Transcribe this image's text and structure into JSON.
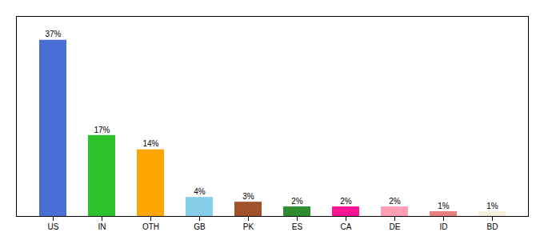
{
  "chart_data": {
    "type": "bar",
    "categories": [
      "US",
      "IN",
      "OTH",
      "GB",
      "PK",
      "ES",
      "CA",
      "DE",
      "ID",
      "BD"
    ],
    "values": [
      37,
      17,
      14,
      4,
      3,
      2,
      2,
      2,
      1,
      1
    ],
    "value_labels": [
      "37%",
      "17%",
      "14%",
      "4%",
      "3%",
      "2%",
      "2%",
      "2%",
      "1%",
      "1%"
    ],
    "colors": [
      "#4A6FD4",
      "#2DC22D",
      "#FFA500",
      "#87CEEB",
      "#A0522D",
      "#2E8B2E",
      "#FF1493",
      "#FF9EB5",
      "#E88080",
      "#F5F0DC"
    ],
    "ylim": [
      0,
      42
    ],
    "data_labels": true,
    "tick_labels": "x",
    "grid": false
  }
}
